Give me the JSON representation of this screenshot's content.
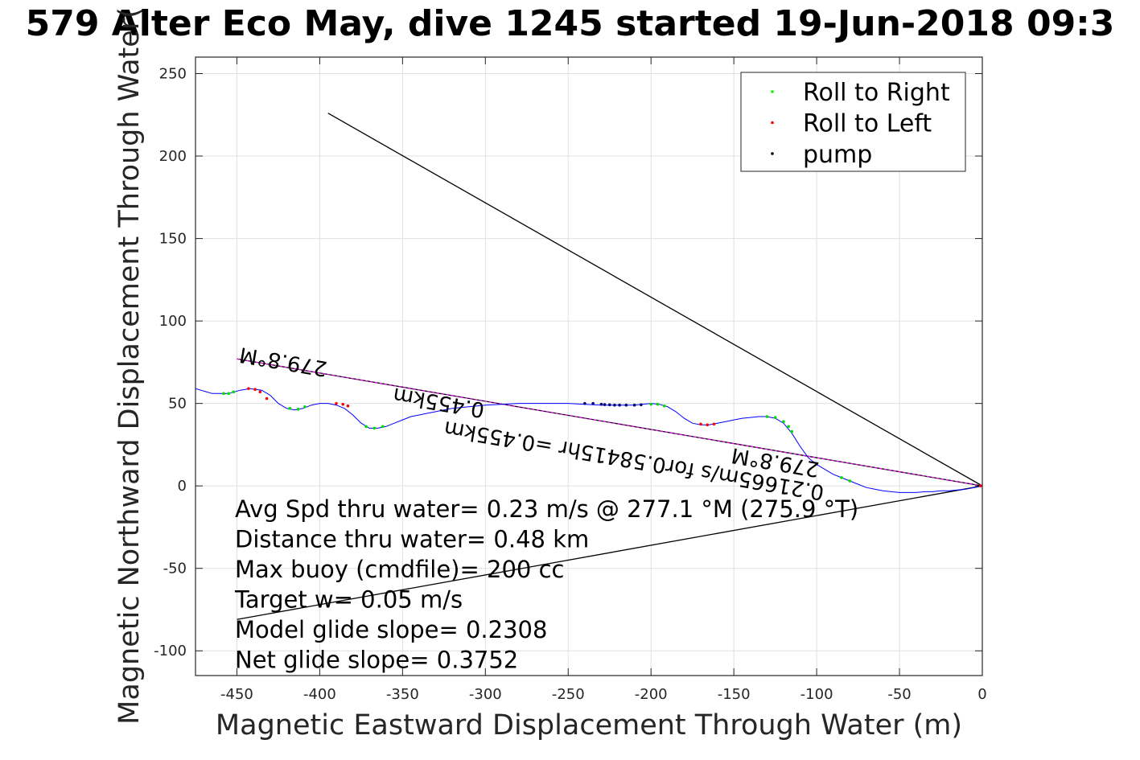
{
  "chart_data": {
    "type": "line",
    "title": "579 Alter Eco May, dive 1245 started 19-Jun-2018 09:3",
    "xlabel": "Magnetic Eastward Displacement Through Water (m)",
    "ylabel": "Magnetic Northward Displacement Through Water(",
    "xlim": [
      -475,
      0
    ],
    "ylim": [
      -115,
      260
    ],
    "xticks": [
      -450,
      -400,
      -350,
      -300,
      -250,
      -200,
      -150,
      -100,
      -50,
      0
    ],
    "yticks": [
      250,
      200,
      150,
      100,
      50,
      0,
      -50,
      -100
    ],
    "grid": true,
    "legend": {
      "placement": "top-right",
      "entries": [
        {
          "label": "Roll to Right",
          "color": "#00ff00"
        },
        {
          "label": "Roll to Left",
          "color": "#ff0000"
        },
        {
          "label": "pump",
          "color": "#000000"
        }
      ]
    },
    "track": {
      "color": "#0000ff",
      "x": [
        -475,
        -465,
        -455,
        -448,
        -442,
        -435,
        -430,
        -425,
        -420,
        -415,
        -410,
        -405,
        -400,
        -395,
        -390,
        -385,
        -380,
        -375,
        -370,
        -365,
        -360,
        -355,
        -350,
        -345,
        -340,
        -335,
        -330,
        -325,
        -320,
        -310,
        -300,
        -290,
        -280,
        -270,
        -260,
        -250,
        -240,
        -230,
        -220,
        -210,
        -200,
        -195,
        -190,
        -185,
        -180,
        -175,
        -170,
        -165,
        -160,
        -155,
        -150,
        -145,
        -140,
        -135,
        -130,
        -125,
        -120,
        -115,
        -110,
        -105,
        -100,
        -95,
        -90,
        -85,
        -80,
        -75,
        -70,
        -65,
        -60,
        -55,
        -50,
        -45,
        -40,
        -35,
        -30,
        -25,
        -20,
        -15,
        -10,
        -5,
        0
      ],
      "y": [
        59,
        56,
        56,
        58,
        59,
        58,
        55,
        50,
        47,
        46,
        47,
        49,
        50,
        50,
        49,
        47,
        43,
        38,
        35,
        35,
        36,
        38,
        40,
        42,
        43,
        44,
        45,
        46,
        47,
        48,
        49,
        49.5,
        50,
        50,
        50,
        50,
        49.5,
        49,
        49,
        49,
        50,
        49.5,
        48,
        45,
        41,
        38,
        37,
        37,
        38,
        39,
        40,
        41,
        41.5,
        42,
        42,
        41,
        38,
        32,
        24,
        17,
        13,
        10,
        7,
        5,
        3,
        1,
        -1,
        -2,
        -3,
        -3.5,
        -4,
        -4,
        -4,
        -3.5,
        -3.5,
        -3,
        -3,
        -2.5,
        -2,
        -1,
        0
      ]
    },
    "roll_right": [
      [
        -458,
        56
      ],
      [
        -455,
        56
      ],
      [
        -452,
        57
      ],
      [
        -418,
        47
      ],
      [
        -413,
        46.5
      ],
      [
        -409,
        48
      ],
      [
        -372,
        36
      ],
      [
        -367,
        35
      ],
      [
        -362,
        36
      ],
      [
        -200,
        49.5
      ],
      [
        -196,
        49.5
      ],
      [
        -192,
        48.5
      ],
      [
        -130,
        42
      ],
      [
        -125,
        41.5
      ],
      [
        -120,
        39
      ],
      [
        -117,
        36
      ],
      [
        -115,
        33
      ],
      [
        -85,
        5
      ],
      [
        -80,
        3
      ]
    ],
    "roll_left": [
      [
        -443,
        59
      ],
      [
        -439,
        58.5
      ],
      [
        -436,
        57
      ],
      [
        -432,
        53
      ],
      [
        -390,
        50
      ],
      [
        -386,
        49.5
      ],
      [
        -383,
        48.5
      ],
      [
        -170,
        37.5
      ],
      [
        -166,
        37
      ],
      [
        -162,
        37.5
      ],
      [
        -1,
        0
      ]
    ],
    "pump": [
      [
        -240,
        50
      ],
      [
        -235,
        50
      ],
      [
        -230,
        49.5
      ],
      [
        -228,
        49.3
      ],
      [
        -225,
        49.2
      ],
      [
        -222,
        49
      ],
      [
        -219,
        49
      ],
      [
        -215,
        49
      ],
      [
        -210,
        49
      ],
      [
        -206,
        49.2
      ]
    ],
    "lines": [
      {
        "name": "heading",
        "from": [
          -450,
          77
        ],
        "to": [
          0,
          0
        ],
        "color": "#000000",
        "dashed_overlay": "#ff00ff"
      },
      {
        "name": "upper",
        "from": [
          -395,
          226
        ],
        "to": [
          0,
          0
        ],
        "color": "#000000"
      },
      {
        "name": "lower",
        "from": [
          -450,
          -81
        ],
        "to": [
          0,
          0
        ],
        "color": "#000000"
      }
    ],
    "annotations": [
      {
        "text": "279.8°M",
        "anchor": [
          -395,
          75
        ],
        "upside_down": true
      },
      {
        "text": "0.455km",
        "anchor": [
          -300,
          50
        ],
        "upside_down": true
      },
      {
        "text": "0.21665m/s for0.58415hr =0.455km",
        "anchor": [
          -95,
          0
        ],
        "upside_down": true
      },
      {
        "text": "279.8°M",
        "anchor": [
          -98,
          14
        ],
        "upside_down": true
      }
    ],
    "annotation_stats": [
      "Avg Spd thru water=  0.23 m/s @ 277.1 °M (275.9 °T)",
      "Distance thru water=  0.48 km",
      "Max buoy (cmdfile)= 200 cc",
      "Target w= 0.05 m/s",
      "Model glide slope= 0.2308",
      "Net glide slope= 0.3752"
    ]
  }
}
